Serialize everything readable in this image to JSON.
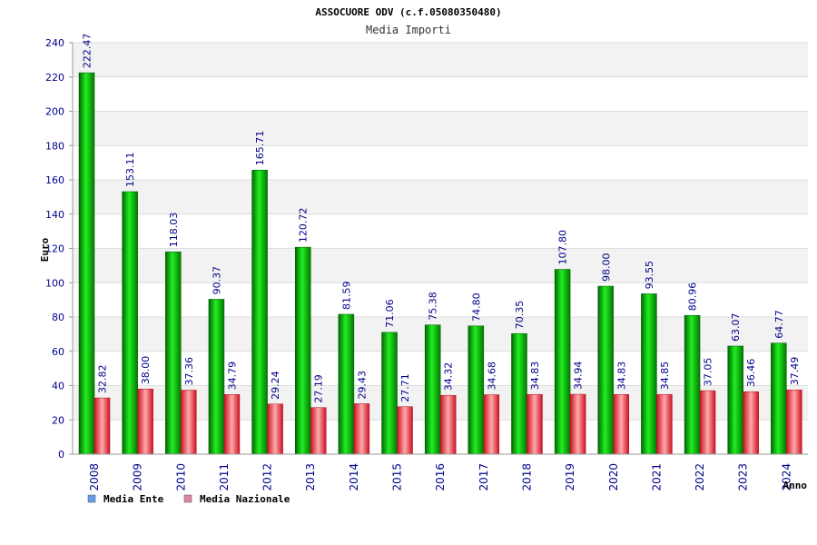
{
  "chart_data": {
    "type": "bar",
    "title": "ASSOCUORE ODV (c.f.05080350480)",
    "subtitle": "Media Importi",
    "xlabel": "Anno",
    "ylabel": "Euro",
    "ylim": [
      0,
      240
    ],
    "yticks": [
      0,
      20,
      40,
      60,
      80,
      100,
      120,
      140,
      160,
      180,
      200,
      220,
      240
    ],
    "grid": true,
    "legend_position": "bottom-left",
    "categories": [
      "2008",
      "2009",
      "2010",
      "2011",
      "2012",
      "2013",
      "2014",
      "2015",
      "2016",
      "2017",
      "2018",
      "2019",
      "2020",
      "2021",
      "2022",
      "2023",
      "2024"
    ],
    "series": [
      {
        "name": "Media Ente",
        "color": "#00aa00",
        "legend_color": "#6699ee",
        "values": [
          222.47,
          153.11,
          118.03,
          90.37,
          165.71,
          120.72,
          81.59,
          71.06,
          75.38,
          74.8,
          70.35,
          107.8,
          98.0,
          93.55,
          80.96,
          63.07,
          64.77
        ],
        "labels": [
          "222.47",
          "153.11",
          "118.03",
          "90.37",
          "165.71",
          "120.72",
          "81.59",
          "71.06",
          "75.38",
          "74.80",
          "70.35",
          "107.80",
          "98.00",
          "93.55",
          "80.96",
          "63.07",
          "64.77"
        ]
      },
      {
        "name": "Media Nazionale",
        "color": "#dd2233",
        "legend_color": "#dd88aa",
        "values": [
          32.82,
          38.0,
          37.36,
          34.79,
          29.24,
          27.19,
          29.43,
          27.71,
          34.32,
          34.68,
          34.83,
          34.94,
          34.83,
          34.85,
          37.05,
          36.46,
          37.49
        ],
        "labels": [
          "32.82",
          "38.00",
          "37.36",
          "34.79",
          "29.24",
          "27.19",
          "29.43",
          "27.71",
          "34.32",
          "34.68",
          "34.83",
          "34.94",
          "34.83",
          "34.85",
          "37.05",
          "36.46",
          "37.49"
        ]
      }
    ]
  }
}
